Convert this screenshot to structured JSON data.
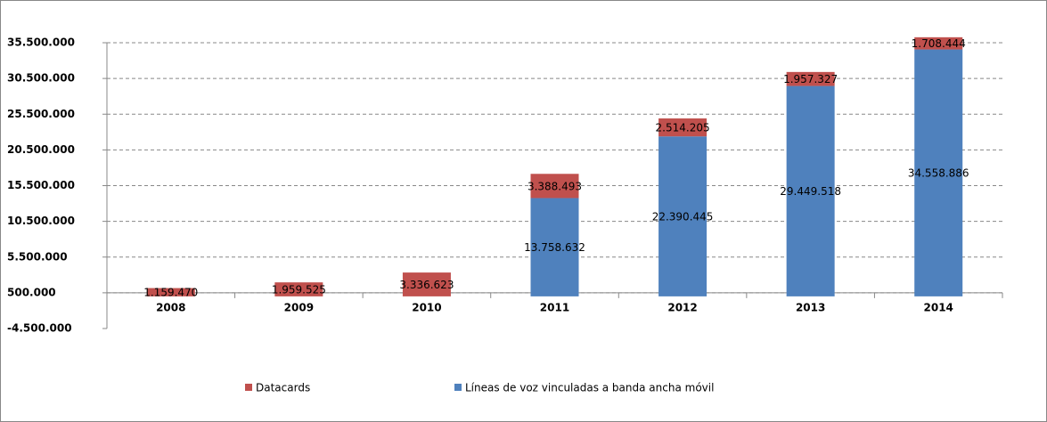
{
  "chart_data": {
    "type": "stacked_bar",
    "categories": [
      "2008",
      "2009",
      "2010",
      "2011",
      "2012",
      "2013",
      "2014"
    ],
    "series": [
      {
        "name": "Datacards",
        "color": "#c0504d",
        "values": [
          1159470,
          1959525,
          3336623,
          3388493,
          2514205,
          1957327,
          1708444
        ],
        "value_labels": [
          "1.159.470",
          "1.959.525",
          "3.336.623",
          "3.388.493",
          "2.514.205",
          "1.957.327",
          "1.708.444"
        ]
      },
      {
        "name": "Líneas de voz vinculadas a banda ancha móvil",
        "color": "#4f81bd",
        "values": [
          null,
          null,
          null,
          13758632,
          22390445,
          29449518,
          34558886
        ],
        "value_labels": [
          null,
          null,
          null,
          "13.758.632",
          "22.390.445",
          "29.449.518",
          "34.558.886"
        ]
      }
    ],
    "ylim": [
      -4500000,
      35500000
    ],
    "yticks": [
      {
        "value": -4500000,
        "label": "-4.500.000"
      },
      {
        "value": 500000,
        "label": "500.000"
      },
      {
        "value": 5500000,
        "label": "5.500.000"
      },
      {
        "value": 10500000,
        "label": "10.500.000"
      },
      {
        "value": 15500000,
        "label": "15.500.000"
      },
      {
        "value": 20500000,
        "label": "20.500.000"
      },
      {
        "value": 25500000,
        "label": "25.500.000"
      },
      {
        "value": 30500000,
        "label": "30.500.000"
      },
      {
        "value": 35500000,
        "label": "35.500.000"
      }
    ],
    "grid": true,
    "legend": "bottom"
  }
}
